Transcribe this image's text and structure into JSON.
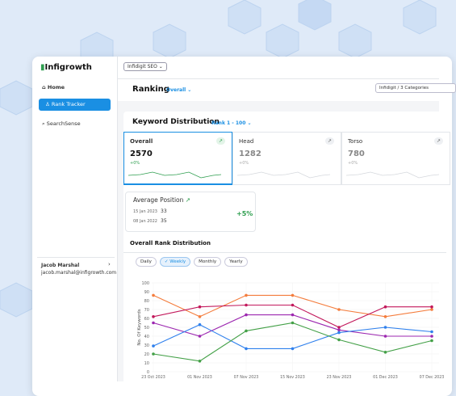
{
  "topbar": {
    "workspace": "Infidigit SEO"
  },
  "sidebar": {
    "brand": "Infigrowth",
    "nav": [
      "Home",
      "Rank Tracker",
      "SearchSense"
    ],
    "active_nav": 1,
    "user": {
      "name": "Jacob Marshal",
      "email": "jacob.marshal@infigrowth.com"
    }
  },
  "header": {
    "title": "Ranking",
    "view": "Overall",
    "filter": "Infidigit / 3 Categories"
  },
  "distribution": {
    "title": "Keyword Distribution",
    "range": "Rank 1 - 100",
    "cards": [
      {
        "label": "Overall",
        "value": 2570,
        "change": "+0%"
      },
      {
        "label": "Head",
        "value": 1282,
        "change": "+0%"
      },
      {
        "label": "Torso",
        "value": 780,
        "change": "+0%"
      }
    ]
  },
  "average_position": {
    "title": "Average Position",
    "change": "+5%",
    "rows": [
      {
        "date": "15 Jan 2023",
        "value": 33
      },
      {
        "date": "08 Jan 2022",
        "value": 35
      }
    ]
  },
  "chart_data": {
    "type": "line",
    "title": "Overall Rank Distribution",
    "periods": [
      "Daily",
      "Weekly",
      "Monthly",
      "Yearly"
    ],
    "active_period": 1,
    "y_label": "No. Of Keywords",
    "categories": [
      "23 Oct 2023",
      "01 Nov 2023",
      "07 Nov 2023",
      "15 Nov 2023",
      "23 Nov 2023",
      "01 Dec 2023",
      "07 Dec 2023"
    ],
    "ylim": [
      0,
      100
    ],
    "yticks": [
      0,
      10,
      20,
      30,
      40,
      50,
      60,
      70,
      80,
      90,
      100
    ],
    "series": [
      {
        "color": "#f47c3c",
        "values": [
          86,
          62,
          86,
          86,
          70,
          62,
          70
        ]
      },
      {
        "color": "#c2185b",
        "values": [
          62,
          73,
          75,
          75,
          50,
          73,
          73
        ]
      },
      {
        "color": "#9c27b0",
        "values": [
          55,
          40,
          64,
          64,
          47,
          40,
          40
        ]
      },
      {
        "color": "#2f80ed",
        "values": [
          29,
          53,
          26,
          26,
          44,
          50,
          45
        ]
      },
      {
        "color": "#43a047",
        "values": [
          20,
          12,
          46,
          55,
          36,
          22,
          35
        ]
      }
    ]
  }
}
